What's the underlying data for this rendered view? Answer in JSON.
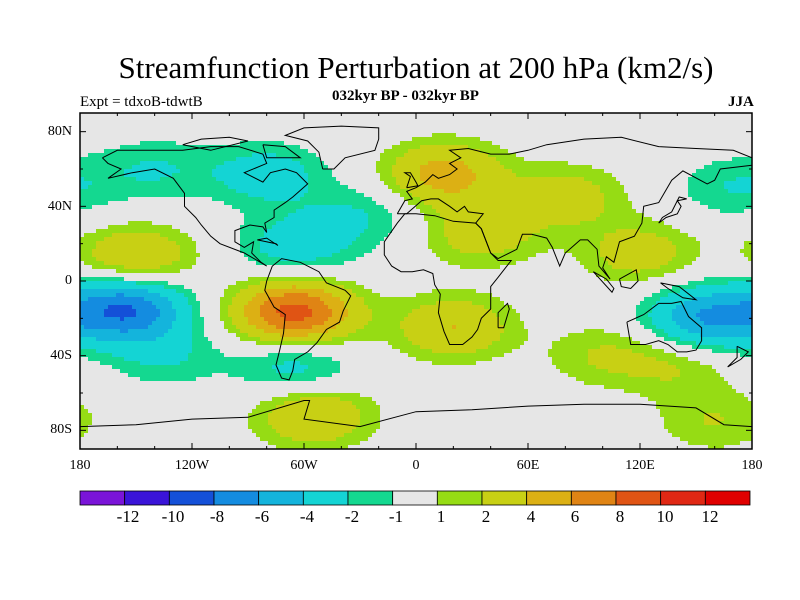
{
  "title": "Streamfunction Perturbation at 200 hPa (km2/s)",
  "subtitle_left": "Expt = tdxoB-tdwtB",
  "subtitle_center": "032kyr BP - 032kyr BP",
  "season": "JJA",
  "lat_labels": [
    "80N",
    "40N",
    "0",
    "40S",
    "80S"
  ],
  "lon_labels": [
    "180",
    "120W",
    "60W",
    "0",
    "60E",
    "120E",
    "180"
  ],
  "colorbar": {
    "labels": [
      "-12",
      "-10",
      "-8",
      "-6",
      "-4",
      "-2",
      "-1",
      "1",
      "2",
      "4",
      "6",
      "8",
      "10",
      "12"
    ],
    "colors": [
      "#7a14d8",
      "#3a14d8",
      "#1450d8",
      "#148ce0",
      "#14b4dc",
      "#14d4d4",
      "#14d890",
      "#e6e6e6",
      "#96dc14",
      "#c8d014",
      "#dcb014",
      "#e08414",
      "#e05414",
      "#e02814",
      "#e00000"
    ]
  },
  "chart_data": {
    "type": "heatmap",
    "title": "Streamfunction Perturbation at 200 hPa (km2/s)",
    "xlabel": "",
    "ylabel": "",
    "xlim": [
      -180,
      180
    ],
    "ylim": [
      -90,
      90
    ],
    "x_ticks": [
      -180,
      -120,
      -60,
      0,
      60,
      120,
      180
    ],
    "y_ticks": [
      80,
      40,
      0,
      -40,
      -80
    ],
    "levels": [
      -12,
      -10,
      -8,
      -6,
      -4,
      -2,
      -1,
      1,
      2,
      4,
      6,
      8,
      10,
      12
    ],
    "anomalies": [
      {
        "lon": -155,
        "lat": -15,
        "value": -8
      },
      {
        "lon": -150,
        "lat": 13,
        "value": 4
      },
      {
        "lon": -135,
        "lat": -40,
        "value": -2
      },
      {
        "lon": -140,
        "lat": 60,
        "value": -2
      },
      {
        "lon": -80,
        "lat": 57,
        "value": -3
      },
      {
        "lon": -65,
        "lat": 18,
        "value": -3
      },
      {
        "lon": -30,
        "lat": 35,
        "value": -2
      },
      {
        "lon": -65,
        "lat": -17,
        "value": 9
      },
      {
        "lon": -65,
        "lat": -45,
        "value": -3
      },
      {
        "lon": -55,
        "lat": -72,
        "value": 4
      },
      {
        "lon": 15,
        "lat": 57,
        "value": 5
      },
      {
        "lon": 35,
        "lat": 25,
        "value": 3
      },
      {
        "lon": 20,
        "lat": -25,
        "value": 4
      },
      {
        "lon": 80,
        "lat": 45,
        "value": 3
      },
      {
        "lon": 120,
        "lat": 15,
        "value": 3
      },
      {
        "lon": 155,
        "lat": -20,
        "value": -6
      },
      {
        "lon": 140,
        "lat": -45,
        "value": 2
      },
      {
        "lon": 100,
        "lat": -40,
        "value": 2
      },
      {
        "lon": 170,
        "lat": 50,
        "value": -2
      },
      {
        "lon": 160,
        "lat": -75,
        "value": 2
      }
    ]
  }
}
